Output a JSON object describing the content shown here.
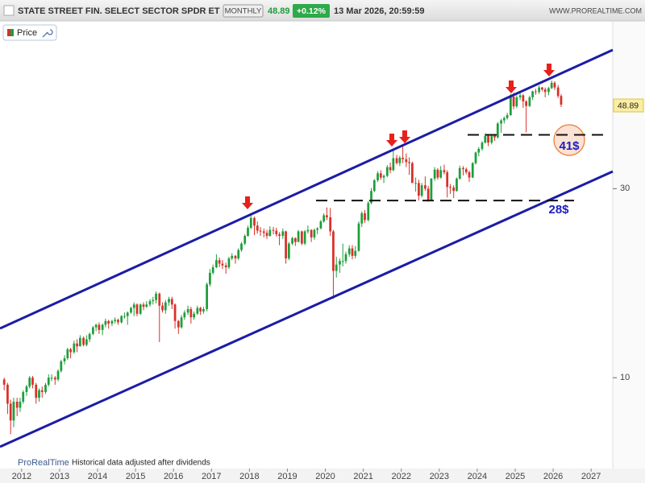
{
  "chart_data": {
    "type": "candlestick",
    "title": "STATE STREET FIN. SELECT SECTOR SPDR ET",
    "period": "MONTHLY",
    "change": "+0.12%",
    "datetime": "13 Mar 2026, 20:59:59",
    "site": "WWW.PROREALTIME.COM",
    "legend": "Price",
    "footer_brand": "ProRealTime",
    "footer_note": "Historical data adjusted after dividends",
    "log_scale": true,
    "up_color": "#1e9e3a",
    "down_color": "#d8302a",
    "xlim": [
      2011.43,
      2027.57
    ],
    "xticks": [
      2012,
      2013,
      2014,
      2015,
      2016,
      2017,
      2018,
      2019,
      2020,
      2021,
      2022,
      2023,
      2024,
      2025,
      2026,
      2027
    ],
    "ylim": [
      5.9,
      81
    ],
    "yticks": [
      10,
      30
    ],
    "annotations": [
      {
        "value": 41,
        "label": "41$"
      },
      {
        "value": 28,
        "label": "28$"
      }
    ],
    "x": [
      2011.54,
      2011.63,
      2011.71,
      2011.79,
      2011.88,
      2011.96,
      2012.04,
      2012.13,
      2012.21,
      2012.29,
      2012.38,
      2012.46,
      2012.54,
      2012.63,
      2012.71,
      2012.79,
      2012.88,
      2012.96,
      2013.04,
      2013.13,
      2013.21,
      2013.29,
      2013.38,
      2013.46,
      2013.54,
      2013.63,
      2013.71,
      2013.79,
      2013.88,
      2013.96,
      2014.04,
      2014.13,
      2014.21,
      2014.29,
      2014.38,
      2014.46,
      2014.54,
      2014.63,
      2014.71,
      2014.79,
      2014.88,
      2014.96,
      2015.04,
      2015.13,
      2015.21,
      2015.29,
      2015.38,
      2015.46,
      2015.54,
      2015.63,
      2015.71,
      2015.79,
      2015.88,
      2015.96,
      2016.04,
      2016.13,
      2016.21,
      2016.29,
      2016.38,
      2016.46,
      2016.54,
      2016.63,
      2016.71,
      2016.79,
      2016.88,
      2016.96,
      2017.04,
      2017.13,
      2017.21,
      2017.29,
      2017.38,
      2017.46,
      2017.54,
      2017.63,
      2017.71,
      2017.79,
      2017.88,
      2017.96,
      2018.04,
      2018.13,
      2018.21,
      2018.29,
      2018.38,
      2018.46,
      2018.54,
      2018.63,
      2018.71,
      2018.79,
      2018.88,
      2018.96,
      2019.04,
      2019.13,
      2019.21,
      2019.29,
      2019.38,
      2019.46,
      2019.54,
      2019.63,
      2019.71,
      2019.79,
      2019.88,
      2019.96,
      2020.04,
      2020.13,
      2020.21,
      2020.29,
      2020.38,
      2020.46,
      2020.54,
      2020.63,
      2020.71,
      2020.79,
      2020.88,
      2020.96,
      2021.04,
      2021.13,
      2021.21,
      2021.29,
      2021.38,
      2021.46,
      2021.54,
      2021.63,
      2021.71,
      2021.79,
      2021.88,
      2021.96,
      2022.04,
      2022.13,
      2022.21,
      2022.29,
      2022.38,
      2022.46,
      2022.54,
      2022.63,
      2022.71,
      2022.79,
      2022.88,
      2022.96,
      2023.04,
      2023.13,
      2023.21,
      2023.29,
      2023.38,
      2023.46,
      2023.54,
      2023.63,
      2023.71,
      2023.79,
      2023.88,
      2023.96,
      2024.04,
      2024.13,
      2024.21,
      2024.29,
      2024.38,
      2024.46,
      2024.54,
      2024.63,
      2024.71,
      2024.79,
      2024.88,
      2024.96,
      2025.04,
      2025.13,
      2025.21,
      2025.29,
      2025.38,
      2025.46,
      2025.54,
      2025.63,
      2025.71,
      2025.79,
      2025.88,
      2025.96,
      2026.04,
      2026.13,
      2026.21
    ],
    "open": [
      9.9,
      9.6,
      8.6,
      7.8,
      8.7,
      8.4,
      8.7,
      9.2,
      9.5,
      10.0,
      9.6,
      8.9,
      9.3,
      9.2,
      9.6,
      10.0,
      10.0,
      9.9,
      10.4,
      11.0,
      11.2,
      11.8,
      11.6,
      12.2,
      12.0,
      12.6,
      12.1,
      12.5,
      12.9,
      13.4,
      13.6,
      13.2,
      13.6,
      13.9,
      13.7,
      13.9,
      14.0,
      13.8,
      14.3,
      14.3,
      14.6,
      15.0,
      15.3,
      14.5,
      15.3,
      15.1,
      15.3,
      15.6,
      15.7,
      16.3,
      15.2,
      14.8,
      15.5,
      15.8,
      15.3,
      13.9,
      13.4,
      14.2,
      14.6,
      14.9,
      14.2,
      14.5,
      15.0,
      14.7,
      14.9,
      17.2,
      18.4,
      19.0,
      19.8,
      19.4,
      19.2,
      19.0,
      20.0,
      20.3,
      20.0,
      21.0,
      21.8,
      22.8,
      23.9,
      25.3,
      24.2,
      23.5,
      23.4,
      23.2,
      22.8,
      23.6,
      23.5,
      23.0,
      22.8,
      23.4,
      20.0,
      21.8,
      22.5,
      22.0,
      23.4,
      21.8,
      23.4,
      23.6,
      22.6,
      23.6,
      23.8,
      24.8,
      25.7,
      25.4,
      23.4,
      18.6,
      19.3,
      19.7,
      19.7,
      20.5,
      21.2,
      20.3,
      20.9,
      24.5,
      26.0,
      25.0,
      27.6,
      29.6,
      31.5,
      32.8,
      32.0,
      32.3,
      34.0,
      33.4,
      35.8,
      34.8,
      35.9,
      35.6,
      35.0,
      34.8,
      31.0,
      31.0,
      28.8,
      30.6,
      30.0,
      28.0,
      31.8,
      33.5,
      32.0,
      33.4,
      33.0,
      30.3,
      30.2,
      29.6,
      31.8,
      33.8,
      33.6,
      33.0,
      32.0,
      34.8,
      37.0,
      37.8,
      39.2,
      40.8,
      39.2,
      40.8,
      40.4,
      43.8,
      44.6,
      45.2,
      46.0,
      51.2,
      48.4,
      51.0,
      51.6,
      49.8,
      48.5,
      51.0,
      52.8,
      52.6,
      54.0,
      53.4,
      52.6,
      53.8,
      55.5,
      54.0,
      51.4
    ],
    "high": [
      10.0,
      9.7,
      8.8,
      8.9,
      8.9,
      8.9,
      9.3,
      9.6,
      10.1,
      10.1,
      9.7,
      9.4,
      9.5,
      9.7,
      10.2,
      10.2,
      10.1,
      10.5,
      11.1,
      11.4,
      11.9,
      11.9,
      12.4,
      12.5,
      12.8,
      12.7,
      12.8,
      13.0,
      13.5,
      13.7,
      13.8,
      13.7,
      14.1,
      14.0,
      14.0,
      14.2,
      14.1,
      14.4,
      14.6,
      14.7,
      15.1,
      15.5,
      15.4,
      15.4,
      15.5,
      15.6,
      15.8,
      16.0,
      16.5,
      16.4,
      15.5,
      15.7,
      16.0,
      16.0,
      15.4,
      14.0,
      14.4,
      14.8,
      15.2,
      15.1,
      14.7,
      15.2,
      15.1,
      15.1,
      17.4,
      18.8,
      19.3,
      20.5,
      20.1,
      19.8,
      19.5,
      20.2,
      20.6,
      20.4,
      21.2,
      22.0,
      23.0,
      24.2,
      25.9,
      25.5,
      24.8,
      24.0,
      23.8,
      23.6,
      24.1,
      24.0,
      23.9,
      23.3,
      23.8,
      23.5,
      22.0,
      22.7,
      22.6,
      23.6,
      23.5,
      23.6,
      24.2,
      23.7,
      23.8,
      24.0,
      25.0,
      26.0,
      26.9,
      26.8,
      23.6,
      20.2,
      20.0,
      21.8,
      20.8,
      21.6,
      21.6,
      21.5,
      24.8,
      26.3,
      26.5,
      27.9,
      30.1,
      31.7,
      33.2,
      33.4,
      32.6,
      34.4,
      34.9,
      37.4,
      36.5,
      36.3,
      38.6,
      36.8,
      36.0,
      35.1,
      32.0,
      31.6,
      31.0,
      32.2,
      30.5,
      31.9,
      34.0,
      33.8,
      34.2,
      34.5,
      33.4,
      30.8,
      30.6,
      32.0,
      34.3,
      34.2,
      33.9,
      33.3,
      35.0,
      37.2,
      38.2,
      39.5,
      41.4,
      41.0,
      41.2,
      41.0,
      44.2,
      45.0,
      45.6,
      46.6,
      52.0,
      52.4,
      51.6,
      52.6,
      52.0,
      50.2,
      51.5,
      53.0,
      53.6,
      54.6,
      54.2,
      54.0,
      54.2,
      56.2,
      56.0,
      54.8,
      52.0
    ],
    "low": [
      9.3,
      8.1,
      7.2,
      7.5,
      8.0,
      8.2,
      8.6,
      9.0,
      9.4,
      9.4,
      8.6,
      8.7,
      8.9,
      9.1,
      9.5,
      9.8,
      9.6,
      9.8,
      10.3,
      10.8,
      11.1,
      11.2,
      11.5,
      11.6,
      12.0,
      12.0,
      12.0,
      12.3,
      12.8,
      13.1,
      12.9,
      12.8,
      13.4,
      13.3,
      13.5,
      13.7,
      13.6,
      13.7,
      14.1,
      13.6,
      14.5,
      14.3,
      14.3,
      14.4,
      14.8,
      15.0,
      15.1,
      15.3,
      15.4,
      12.3,
      14.6,
      14.5,
      15.2,
      14.9,
      13.3,
      12.9,
      13.3,
      14.0,
      14.4,
      13.7,
      14.0,
      14.4,
      14.4,
      14.5,
      14.7,
      17.0,
      18.2,
      18.9,
      19.0,
      18.8,
      18.3,
      18.8,
      19.8,
      19.4,
      19.8,
      20.8,
      21.6,
      22.7,
      23.7,
      22.9,
      23.1,
      22.8,
      22.6,
      22.4,
      22.7,
      23.0,
      22.7,
      21.6,
      22.4,
      19.4,
      19.8,
      21.6,
      21.5,
      22.0,
      21.6,
      21.6,
      23.1,
      22.0,
      22.3,
      23.0,
      23.7,
      24.6,
      25.0,
      22.8,
      15.8,
      17.9,
      18.4,
      19.1,
      19.4,
      20.2,
      19.9,
      20.0,
      20.8,
      24.0,
      24.6,
      24.8,
      27.4,
      29.4,
      31.2,
      31.6,
      31.0,
      32.1,
      32.8,
      33.2,
      34.5,
      34.2,
      34.8,
      34.0,
      32.5,
      31.0,
      29.5,
      28.0,
      28.5,
      29.6,
      27.8,
      27.9,
      31.4,
      31.6,
      31.8,
      32.6,
      28.5,
      29.1,
      28.4,
      29.5,
      31.6,
      32.4,
      32.6,
      31.2,
      31.9,
      34.5,
      36.2,
      37.4,
      39.0,
      38.4,
      38.8,
      39.6,
      40.1,
      41.5,
      43.8,
      44.8,
      45.8,
      47.6,
      47.9,
      50.2,
      48.0,
      41.6,
      48.2,
      50.2,
      51.8,
      52.0,
      52.8,
      51.0,
      51.6,
      53.5,
      53.2,
      50.8,
      48.2
    ],
    "close": [
      9.6,
      8.6,
      7.8,
      8.7,
      8.4,
      8.7,
      9.2,
      9.5,
      10.0,
      9.6,
      8.9,
      9.3,
      9.2,
      9.6,
      10.0,
      10.0,
      9.9,
      10.4,
      11.0,
      11.2,
      11.8,
      11.6,
      12.2,
      12.0,
      12.6,
      12.1,
      12.5,
      12.9,
      13.4,
      13.6,
      13.2,
      13.6,
      13.9,
      13.7,
      13.9,
      14.0,
      13.8,
      14.3,
      14.3,
      14.6,
      15.0,
      15.3,
      14.5,
      15.3,
      15.1,
      15.3,
      15.6,
      15.7,
      16.3,
      15.2,
      14.8,
      15.5,
      15.8,
      15.3,
      13.9,
      13.4,
      14.2,
      14.6,
      14.9,
      14.2,
      14.5,
      15.0,
      14.7,
      14.9,
      17.2,
      18.4,
      19.0,
      19.8,
      19.4,
      19.2,
      19.0,
      20.0,
      20.3,
      20.0,
      21.0,
      21.8,
      22.8,
      23.9,
      25.3,
      24.2,
      23.5,
      23.4,
      23.2,
      22.8,
      23.6,
      23.5,
      23.0,
      22.8,
      23.4,
      20.0,
      21.8,
      22.5,
      22.0,
      23.4,
      21.8,
      23.4,
      23.6,
      22.6,
      23.6,
      23.8,
      24.8,
      25.7,
      25.4,
      23.4,
      18.6,
      19.3,
      19.7,
      19.7,
      20.5,
      21.2,
      20.3,
      20.9,
      24.5,
      26.0,
      25.0,
      27.6,
      29.6,
      31.5,
      32.8,
      32.0,
      32.3,
      34.0,
      33.4,
      35.8,
      34.8,
      35.9,
      35.6,
      35.0,
      34.8,
      31.0,
      31.0,
      28.8,
      30.6,
      30.0,
      28.0,
      31.8,
      33.5,
      32.0,
      33.4,
      33.0,
      30.3,
      30.2,
      29.6,
      31.8,
      33.8,
      33.6,
      33.0,
      32.0,
      34.8,
      37.0,
      37.8,
      39.2,
      40.8,
      39.2,
      40.8,
      40.4,
      43.8,
      44.6,
      45.2,
      46.0,
      51.2,
      48.4,
      51.0,
      51.6,
      49.8,
      48.5,
      51.0,
      52.8,
      52.6,
      54.0,
      53.4,
      52.6,
      53.8,
      55.5,
      54.0,
      51.4,
      48.89
    ]
  }
}
